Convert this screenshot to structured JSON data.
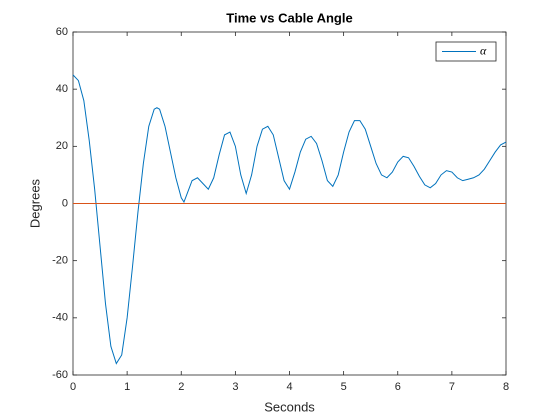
{
  "chart_data": {
    "type": "line",
    "title": "Time vs Cable Angle",
    "x_label": "Seconds",
    "y_label": "Degrees",
    "xlim": [
      0,
      8
    ],
    "ylim": [
      -60,
      60
    ],
    "xticks": [
      0,
      1,
      2,
      3,
      4,
      5,
      6,
      7,
      8
    ],
    "yticks": [
      -60,
      -40,
      -20,
      0,
      20,
      40,
      60
    ],
    "legend_position": "upper right",
    "series": [
      {
        "name": "α",
        "color": "#0072bd",
        "x": [
          0,
          0.1,
          0.2,
          0.3,
          0.4,
          0.5,
          0.6,
          0.7,
          0.8,
          0.9,
          1.0,
          1.1,
          1.2,
          1.3,
          1.4,
          1.5,
          1.55,
          1.6,
          1.7,
          1.8,
          1.9,
          2.0,
          2.05,
          2.1,
          2.2,
          2.3,
          2.4,
          2.5,
          2.6,
          2.7,
          2.8,
          2.9,
          3.0,
          3.1,
          3.2,
          3.3,
          3.4,
          3.5,
          3.6,
          3.7,
          3.8,
          3.9,
          4.0,
          4.1,
          4.2,
          4.3,
          4.4,
          4.5,
          4.6,
          4.7,
          4.8,
          4.9,
          5.0,
          5.1,
          5.2,
          5.3,
          5.4,
          5.5,
          5.6,
          5.7,
          5.8,
          5.9,
          6.0,
          6.1,
          6.2,
          6.3,
          6.4,
          6.5,
          6.6,
          6.7,
          6.8,
          6.9,
          7.0,
          7.1,
          7.2,
          7.3,
          7.4,
          7.5,
          7.6,
          7.7,
          7.8,
          7.9,
          8.0
        ],
        "values": [
          45,
          43,
          36,
          22,
          5,
          -15,
          -35,
          -50,
          -56,
          -53,
          -40,
          -22,
          -3,
          14,
          27,
          33,
          33.5,
          33,
          27,
          18,
          9,
          2,
          0.5,
          3,
          8,
          9,
          7,
          5,
          9,
          17,
          24,
          25,
          20,
          10,
          3.5,
          10,
          20,
          26,
          27,
          24,
          16,
          8,
          5,
          11,
          18,
          22.5,
          23.5,
          21,
          15,
          8,
          6,
          10,
          18,
          25,
          29,
          29,
          26,
          20,
          14,
          10,
          9,
          11,
          14.5,
          16.5,
          16,
          13,
          9.5,
          6.5,
          5.5,
          7,
          10,
          11.5,
          11,
          9,
          8,
          8.5,
          9,
          10,
          12,
          15,
          18,
          20.5,
          21.5
        ]
      },
      {
        "color": "#d95319",
        "x": [
          0,
          8
        ],
        "values": [
          0,
          0
        ]
      }
    ]
  }
}
